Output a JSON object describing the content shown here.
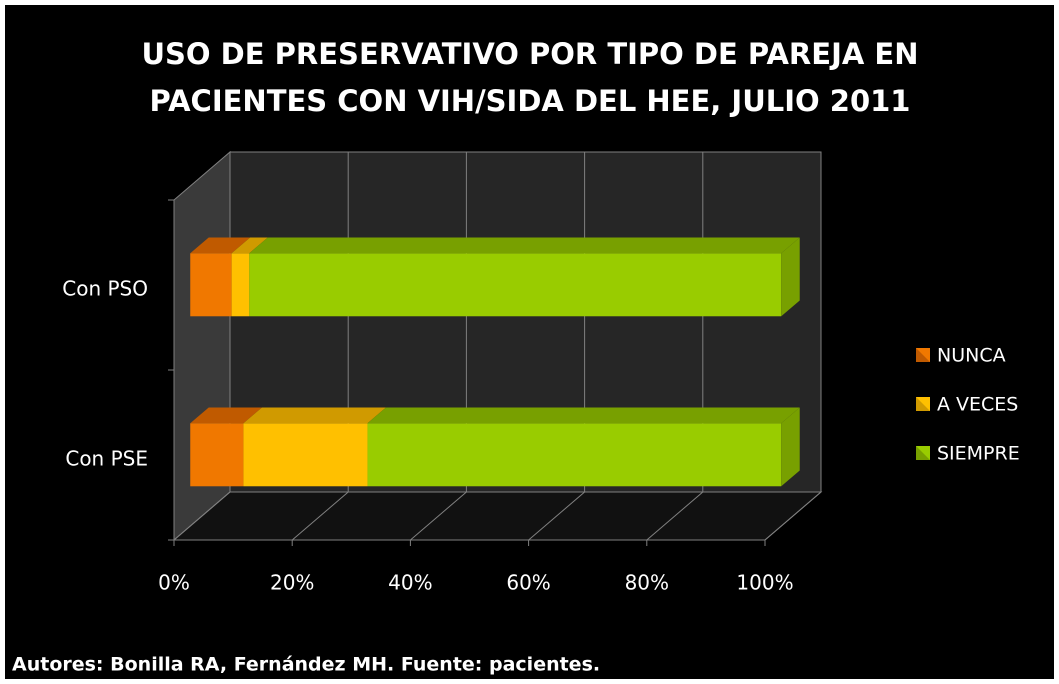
{
  "chart_data": {
    "type": "bar3d_stacked_horizontal",
    "title": [
      "USO DE PRESERVATIVO POR TIPO DE PAREJA EN",
      "PACIENTES CON VIH/SIDA DEL HEE, JULIO 2011"
    ],
    "categories": [
      "Con PSO",
      "Con PSE"
    ],
    "series": [
      {
        "name": "NUNCA",
        "color": "#f07800",
        "values": [
          7,
          9
        ]
      },
      {
        "name": "A VECES",
        "color": "#ffc000",
        "values": [
          3,
          21
        ]
      },
      {
        "name": "SIEMPRE",
        "color": "#99cc00",
        "values": [
          90,
          70
        ]
      }
    ],
    "xlim": [
      0,
      100
    ],
    "xticks": [
      {
        "value": 0,
        "label": "0%"
      },
      {
        "value": 20,
        "label": "20%"
      },
      {
        "value": 40,
        "label": "40%"
      },
      {
        "value": 60,
        "label": "60%"
      },
      {
        "value": 80,
        "label": "80%"
      },
      {
        "value": 100,
        "label": "100%"
      }
    ],
    "grid": true,
    "legend": "right",
    "note": "Autores: Bonilla RA, Fernández MH. Fuente: pacientes."
  }
}
